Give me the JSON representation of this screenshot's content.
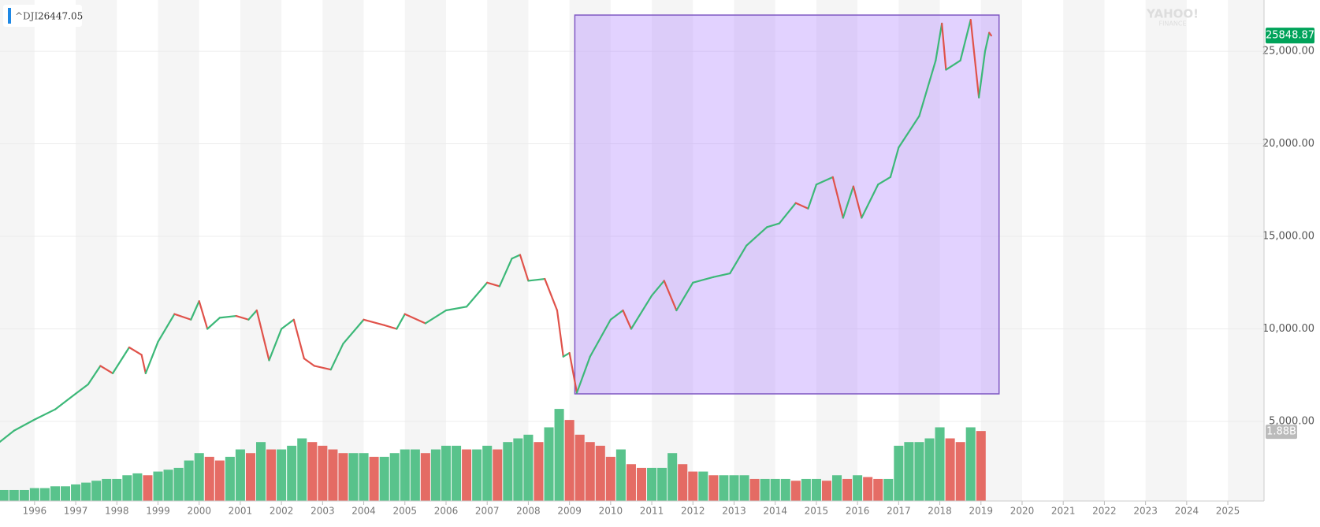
{
  "chart_data": {
    "type": "candlestick",
    "symbol": "^DJI",
    "quote": "26447.05",
    "watermark": [
      "YAHOO!",
      "FINANCE"
    ],
    "last_price": {
      "value": 25848.87,
      "label": "25848.87"
    },
    "xlim": [
      1995.16,
      2025.88
    ],
    "xticks": [
      1996,
      1997,
      1998,
      1999,
      2000,
      2001,
      2002,
      2003,
      2004,
      2005,
      2006,
      2007,
      2008,
      2009,
      2010,
      2011,
      2012,
      2013,
      2014,
      2015,
      2016,
      2017,
      2018,
      2019,
      2020,
      2021,
      2022,
      2023,
      2024,
      2025
    ],
    "ylim": [
      700,
      27770
    ],
    "yticks": [
      {
        "value": 5000,
        "label": "5,000.00"
      },
      {
        "value": 10000,
        "label": "10,000.00"
      },
      {
        "value": 15000,
        "label": "15,000.00"
      },
      {
        "value": 20000,
        "label": "20,000.00"
      },
      {
        "value": 25000,
        "label": "25,000.00"
      }
    ],
    "y2lim": [
      0,
      13.6
    ],
    "y2ticks": [
      {
        "value": 1.88,
        "label": "1.88B"
      }
    ],
    "grid": true,
    "up_color": "#3cb878",
    "down_color": "#e0524a",
    "series": [
      {
        "name": "^DJI",
        "color": "#e0524a",
        "x": [
          1995.16,
          1995.5,
          1996,
          1996.5,
          1997,
          1997.3,
          1997.6,
          1997.9,
          1998.3,
          1998.6,
          1998.7,
          1999,
          1999.4,
          1999.8,
          2000,
          2000.2,
          2000.5,
          2000.9,
          2001.2,
          2001.4,
          2001.7,
          2002,
          2002.3,
          2002.55,
          2002.8,
          2003.2,
          2003.5,
          2004,
          2004.5,
          2004.8,
          2005,
          2005.5,
          2006,
          2006.5,
          2007,
          2007.3,
          2007.6,
          2007.8,
          2008,
          2008.4,
          2008.7,
          2008.85,
          2009,
          2009.18,
          2009.5,
          2010,
          2010.3,
          2010.5,
          2011,
          2011.3,
          2011.6,
          2012,
          2012.5,
          2012.9,
          2013.3,
          2013.8,
          2014.1,
          2014.5,
          2014.8,
          2015,
          2015.4,
          2015.65,
          2015.9,
          2016.1,
          2016.5,
          2016.8,
          2017,
          2017.5,
          2017.9,
          2018.05,
          2018.15,
          2018.5,
          2018.75,
          2018.95,
          2019.1,
          2019.2,
          2019.25
        ],
        "values": [
          3900,
          4500,
          5100,
          5650,
          6500,
          7000,
          8000,
          7600,
          9000,
          8600,
          7600,
          9300,
          10800,
          10500,
          11500,
          10000,
          10600,
          10700,
          10500,
          11000,
          8300,
          10000,
          10500,
          8400,
          8000,
          7800,
          9200,
          10500,
          10200,
          10000,
          10800,
          10300,
          11000,
          11200,
          12500,
          12300,
          13800,
          14000,
          12600,
          12700,
          11000,
          8500,
          8700,
          6550,
          8500,
          10500,
          11000,
          10000,
          11800,
          12600,
          11000,
          12500,
          12800,
          13000,
          14500,
          15500,
          15700,
          16800,
          16500,
          17800,
          18200,
          16000,
          17700,
          16000,
          17800,
          18200,
          19800,
          21500,
          24500,
          26500,
          24000,
          24500,
          26700,
          22500,
          25000,
          26000,
          25849
        ]
      },
      {
        "name": "Volume",
        "axis": "y2",
        "color": "#3cb878",
        "x": [
          1995.25,
          1995.5,
          1995.75,
          1996,
          1996.25,
          1996.5,
          1996.75,
          1997,
          1997.25,
          1997.5,
          1997.75,
          1998,
          1998.25,
          1998.5,
          1998.75,
          1999,
          1999.25,
          1999.5,
          1999.75,
          2000,
          2000.25,
          2000.5,
          2000.75,
          2001,
          2001.25,
          2001.5,
          2001.75,
          2002,
          2002.25,
          2002.5,
          2002.75,
          2003,
          2003.25,
          2003.5,
          2003.75,
          2004,
          2004.25,
          2004.5,
          2004.75,
          2005,
          2005.25,
          2005.5,
          2005.75,
          2006,
          2006.25,
          2006.5,
          2006.75,
          2007,
          2007.25,
          2007.5,
          2007.75,
          2008,
          2008.25,
          2008.5,
          2008.75,
          2009,
          2009.25,
          2009.5,
          2009.75,
          2010,
          2010.25,
          2010.5,
          2010.75,
          2011,
          2011.25,
          2011.5,
          2011.75,
          2012,
          2012.25,
          2012.5,
          2012.75,
          2013,
          2013.25,
          2013.5,
          2013.75,
          2014,
          2014.25,
          2014.5,
          2014.75,
          2015,
          2015.25,
          2015.5,
          2015.75,
          2016,
          2016.25,
          2016.5,
          2016.75,
          2017,
          2017.25,
          2017.5,
          2017.75,
          2018,
          2018.25,
          2018.5,
          2018.75,
          2019
        ],
        "values": [
          0.3,
          0.3,
          0.3,
          0.35,
          0.35,
          0.4,
          0.4,
          0.45,
          0.5,
          0.55,
          0.6,
          0.6,
          0.7,
          0.75,
          0.7,
          0.8,
          0.85,
          0.9,
          1.1,
          1.3,
          1.2,
          1.1,
          1.2,
          1.4,
          1.3,
          1.6,
          1.4,
          1.4,
          1.5,
          1.7,
          1.6,
          1.5,
          1.4,
          1.3,
          1.3,
          1.3,
          1.2,
          1.2,
          1.3,
          1.4,
          1.4,
          1.3,
          1.4,
          1.5,
          1.5,
          1.4,
          1.4,
          1.5,
          1.4,
          1.6,
          1.7,
          1.8,
          1.6,
          2.0,
          2.5,
          2.2,
          1.8,
          1.6,
          1.5,
          1.2,
          1.4,
          1.0,
          0.9,
          0.9,
          0.9,
          1.3,
          1.0,
          0.8,
          0.8,
          0.7,
          0.7,
          0.7,
          0.7,
          0.6,
          0.6,
          0.6,
          0.6,
          0.55,
          0.6,
          0.6,
          0.55,
          0.7,
          0.6,
          0.7,
          0.65,
          0.6,
          0.6,
          1.5,
          1.6,
          1.6,
          1.7,
          2.0,
          1.7,
          1.6,
          2.0,
          1.9
        ]
      }
    ],
    "selection": {
      "x": [
        2009.13,
        2019.44
      ],
      "y": [
        6489,
        26957
      ],
      "color": "#b388ff"
    }
  }
}
